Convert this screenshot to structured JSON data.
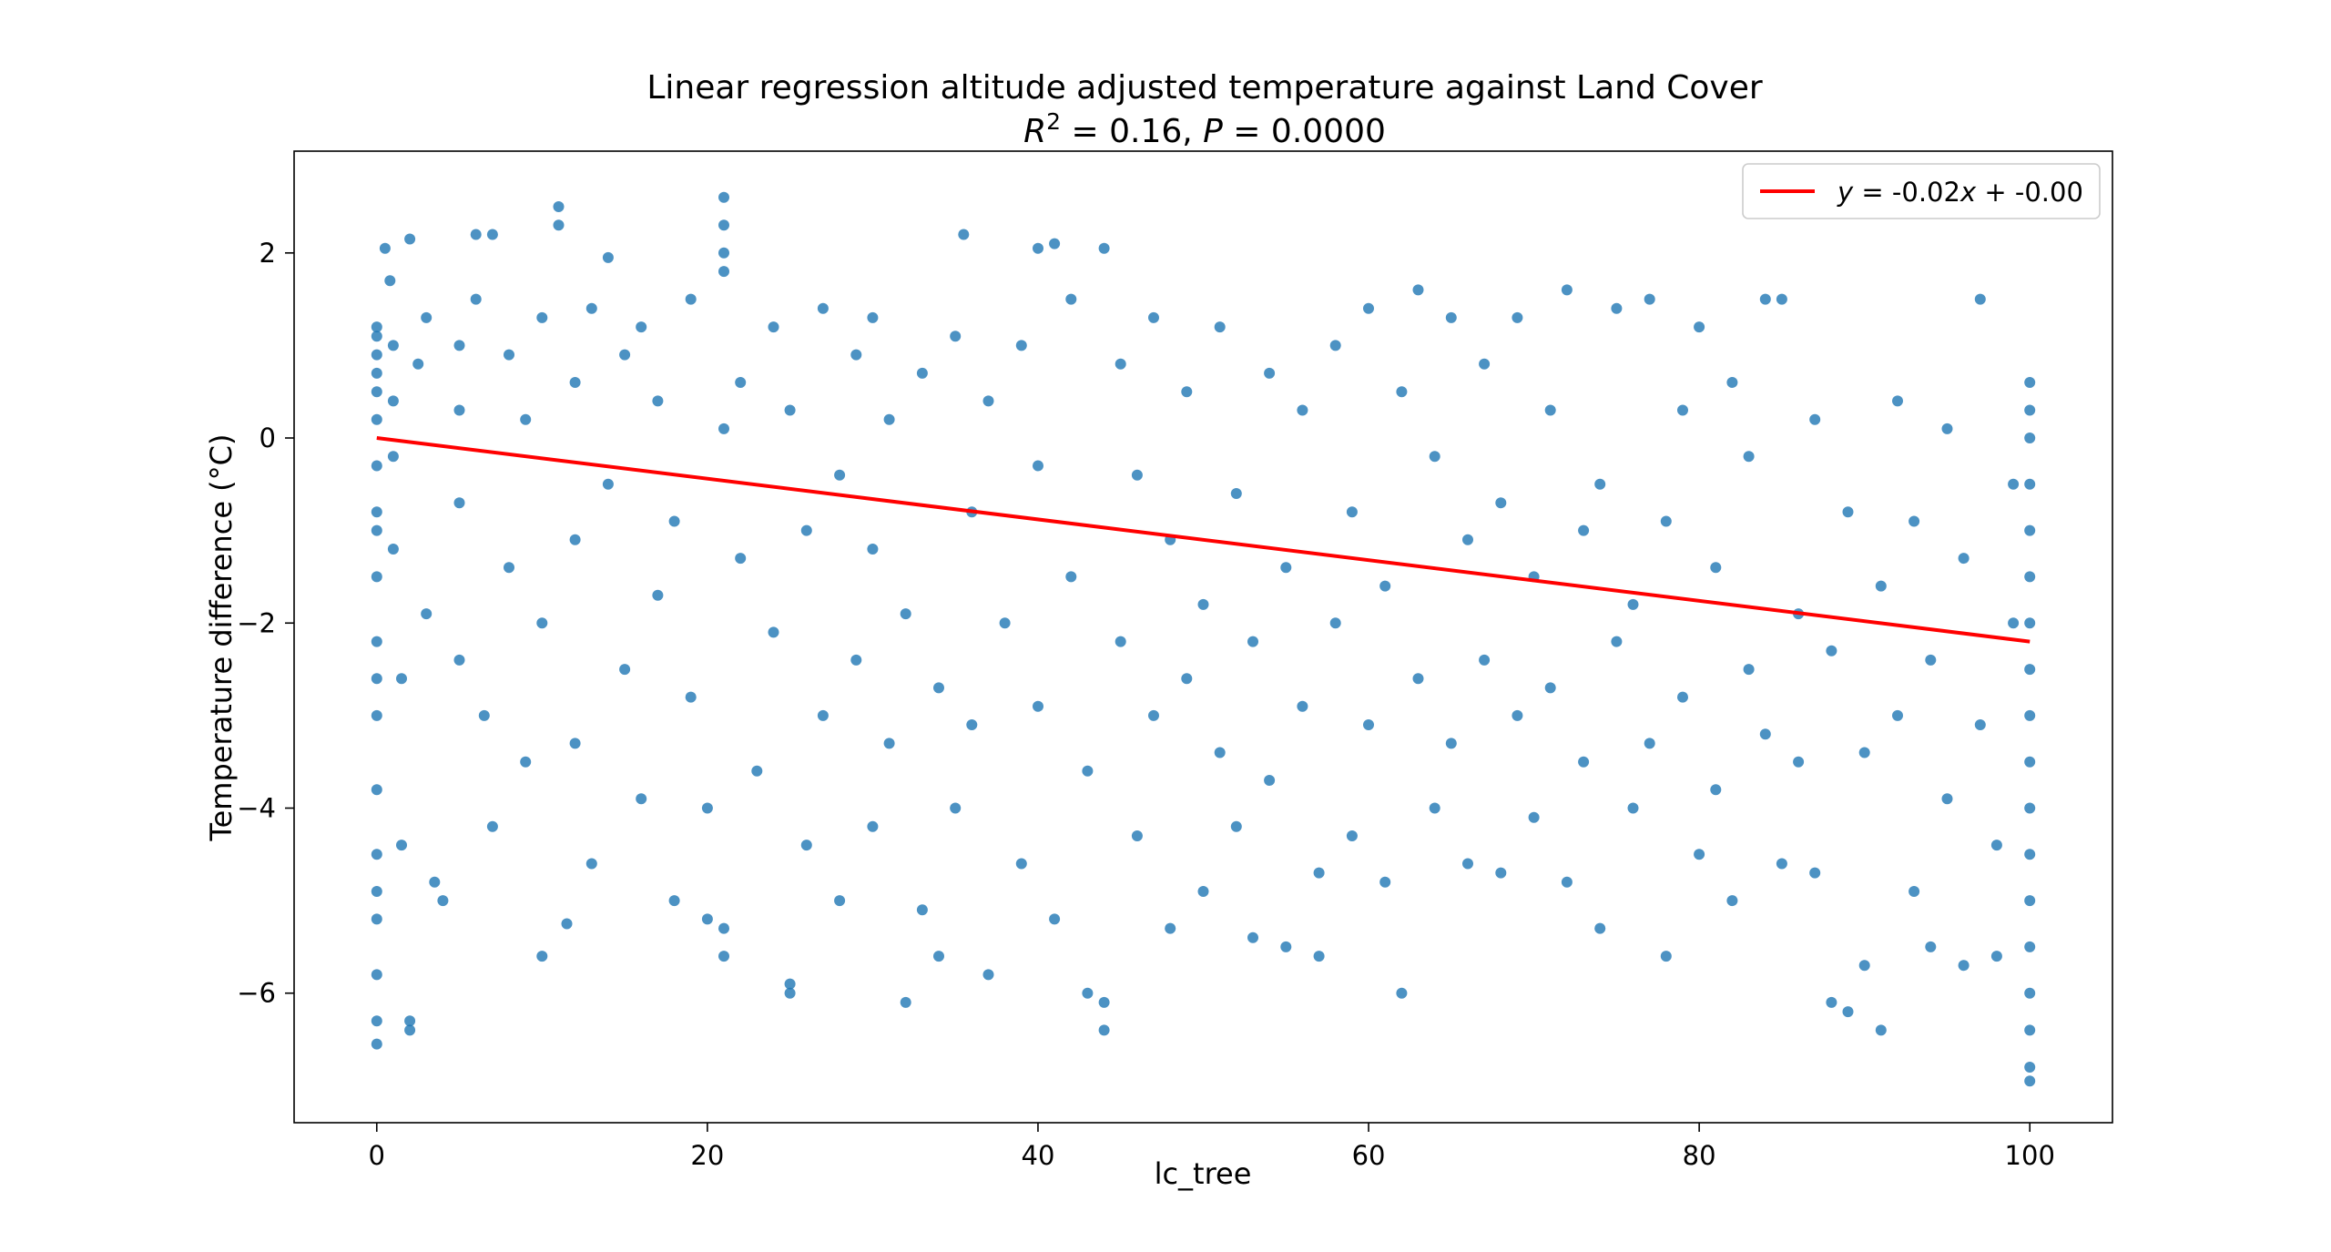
{
  "chart_data": {
    "type": "scatter",
    "title_line1": "Linear regression altitude adjusted temperature against Land Cover",
    "stats": {
      "r2_symbol": "R",
      "r2_exp": "2",
      "r2_value": " =  0.16, ",
      "p_symbol": "P",
      "p_value": " =  0.0000"
    },
    "xlabel": "lc_tree",
    "ylabel": "Temperature difference ($^\\circ$C)",
    "ylabel_display": "Temperature difference (°C)",
    "xlim": [
      -5,
      105
    ],
    "ylim": [
      -7.4,
      3.1
    ],
    "xticks": [
      0,
      20,
      40,
      60,
      80,
      100
    ],
    "yticks": [
      -6,
      -4,
      -2,
      0,
      2
    ],
    "ytick_labels": [
      "−6",
      "−4",
      "−2",
      "0",
      "2"
    ],
    "grid": false,
    "legend_placement": "top-right",
    "colors": {
      "points": "#1f77b4",
      "fit": "#ff0000"
    },
    "regression": {
      "slope": -0.02,
      "intercept": -0.0,
      "x_range": [
        0,
        100
      ],
      "y_start": 0.0,
      "y_end": -2.2,
      "legend_y": "y",
      "legend_eq": " = -0.02",
      "legend_x": "x",
      "legend_rest": " + -0.00"
    },
    "points": [
      [
        0,
        1.1
      ],
      [
        0,
        0.9
      ],
      [
        0,
        0.5
      ],
      [
        0,
        0.2
      ],
      [
        0,
        -0.3
      ],
      [
        0,
        -0.8
      ],
      [
        0,
        -1.5
      ],
      [
        0,
        -2.2
      ],
      [
        0,
        -3.0
      ],
      [
        0,
        -3.8
      ],
      [
        0,
        -4.5
      ],
      [
        0,
        -5.2
      ],
      [
        0,
        -5.8
      ],
      [
        0,
        -6.3
      ],
      [
        0,
        -6.55
      ],
      [
        0,
        0.7
      ],
      [
        0,
        1.2
      ],
      [
        0,
        -1.0
      ],
      [
        0,
        -2.6
      ],
      [
        0,
        -4.9
      ],
      [
        0.5,
        2.05
      ],
      [
        0.8,
        1.7
      ],
      [
        1,
        1.0
      ],
      [
        1,
        0.4
      ],
      [
        1,
        -0.2
      ],
      [
        1,
        -1.2
      ],
      [
        1.5,
        -2.6
      ],
      [
        1.5,
        -4.4
      ],
      [
        2,
        -6.3
      ],
      [
        2,
        -6.4
      ],
      [
        2,
        2.15
      ],
      [
        2.5,
        0.8
      ],
      [
        3,
        1.3
      ],
      [
        3,
        -1.9
      ],
      [
        3.5,
        -4.8
      ],
      [
        4,
        -5.0
      ],
      [
        5,
        1.0
      ],
      [
        5,
        0.3
      ],
      [
        5,
        -0.7
      ],
      [
        5,
        -2.4
      ],
      [
        6,
        2.2
      ],
      [
        6,
        1.5
      ],
      [
        6.5,
        -3.0
      ],
      [
        7,
        2.2
      ],
      [
        7,
        -4.2
      ],
      [
        8,
        0.9
      ],
      [
        8,
        -1.4
      ],
      [
        9,
        -3.5
      ],
      [
        9,
        0.2
      ],
      [
        10,
        -5.6
      ],
      [
        10,
        1.3
      ],
      [
        10,
        -2.0
      ],
      [
        11,
        2.5
      ],
      [
        11,
        2.3
      ],
      [
        11.5,
        -5.25
      ],
      [
        12,
        0.6
      ],
      [
        12,
        -1.1
      ],
      [
        12,
        -3.3
      ],
      [
        13,
        1.4
      ],
      [
        13,
        -4.6
      ],
      [
        14,
        1.95
      ],
      [
        14,
        -0.5
      ],
      [
        15,
        -2.5
      ],
      [
        15,
        0.9
      ],
      [
        16,
        -3.9
      ],
      [
        16,
        1.2
      ],
      [
        17,
        -1.7
      ],
      [
        17,
        0.4
      ],
      [
        18,
        -5.0
      ],
      [
        18,
        -0.9
      ],
      [
        19,
        1.5
      ],
      [
        19,
        -2.8
      ],
      [
        20,
        -5.2
      ],
      [
        20,
        -4.0
      ],
      [
        21,
        2.6
      ],
      [
        21,
        2.3
      ],
      [
        21,
        2.0
      ],
      [
        21,
        1.8
      ],
      [
        21,
        0.1
      ],
      [
        21,
        -5.6
      ],
      [
        21,
        -5.3
      ],
      [
        22,
        -1.3
      ],
      [
        22,
        0.6
      ],
      [
        23,
        -3.6
      ],
      [
        24,
        1.2
      ],
      [
        24,
        -2.1
      ],
      [
        25,
        -5.9
      ],
      [
        25,
        -6.0
      ],
      [
        25,
        0.3
      ],
      [
        26,
        -4.4
      ],
      [
        26,
        -1.0
      ],
      [
        27,
        1.4
      ],
      [
        27,
        -3.0
      ],
      [
        28,
        -0.4
      ],
      [
        28,
        -5.0
      ],
      [
        29,
        0.9
      ],
      [
        29,
        -2.4
      ],
      [
        30,
        -4.2
      ],
      [
        30,
        1.3
      ],
      [
        30,
        -1.2
      ],
      [
        31,
        -3.3
      ],
      [
        31,
        0.2
      ],
      [
        32,
        -6.1
      ],
      [
        32,
        -1.9
      ],
      [
        33,
        -5.1
      ],
      [
        33,
        0.7
      ],
      [
        34,
        -2.7
      ],
      [
        34,
        -5.6
      ],
      [
        35,
        1.1
      ],
      [
        35,
        -4.0
      ],
      [
        35.5,
        2.2
      ],
      [
        36,
        -0.8
      ],
      [
        36,
        -3.1
      ],
      [
        37,
        -5.8
      ],
      [
        37,
        0.4
      ],
      [
        38,
        -2.0
      ],
      [
        39,
        -4.6
      ],
      [
        39,
        1.0
      ],
      [
        40,
        -0.3
      ],
      [
        40,
        -2.9
      ],
      [
        40,
        2.05
      ],
      [
        41,
        -5.2
      ],
      [
        41,
        2.1
      ],
      [
        42,
        1.5
      ],
      [
        42,
        -1.5
      ],
      [
        43,
        -3.6
      ],
      [
        43,
        -6.0
      ],
      [
        44,
        -6.1
      ],
      [
        44,
        -6.4
      ],
      [
        44,
        2.05
      ],
      [
        45,
        0.8
      ],
      [
        45,
        -2.2
      ],
      [
        46,
        -4.3
      ],
      [
        46,
        -0.4
      ],
      [
        47,
        1.3
      ],
      [
        47,
        -3.0
      ],
      [
        48,
        -5.3
      ],
      [
        48,
        -1.1
      ],
      [
        49,
        0.5
      ],
      [
        49,
        -2.6
      ],
      [
        50,
        -4.9
      ],
      [
        50,
        -1.8
      ],
      [
        51,
        1.2
      ],
      [
        51,
        -3.4
      ],
      [
        52,
        -0.6
      ],
      [
        52,
        -4.2
      ],
      [
        53,
        -2.2
      ],
      [
        53,
        -5.4
      ],
      [
        54,
        0.7
      ],
      [
        54,
        -3.7
      ],
      [
        55,
        -1.4
      ],
      [
        55,
        -5.5
      ],
      [
        56,
        -2.9
      ],
      [
        56,
        0.3
      ],
      [
        57,
        -4.7
      ],
      [
        57,
        -5.6
      ],
      [
        58,
        1.0
      ],
      [
        58,
        -2.0
      ],
      [
        59,
        -4.3
      ],
      [
        59,
        -0.8
      ],
      [
        60,
        -3.1
      ],
      [
        60,
        1.4
      ],
      [
        61,
        -4.8
      ],
      [
        61,
        -1.6
      ],
      [
        62,
        -6.0
      ],
      [
        62,
        0.5
      ],
      [
        63,
        -2.6
      ],
      [
        63,
        1.6
      ],
      [
        64,
        -4.0
      ],
      [
        64,
        -0.2
      ],
      [
        65,
        -3.3
      ],
      [
        65,
        1.3
      ],
      [
        66,
        -1.1
      ],
      [
        66,
        -4.6
      ],
      [
        67,
        0.8
      ],
      [
        67,
        -2.4
      ],
      [
        68,
        -4.7
      ],
      [
        68,
        -0.7
      ],
      [
        69,
        1.3
      ],
      [
        69,
        -3.0
      ],
      [
        70,
        -1.5
      ],
      [
        70,
        -4.1
      ],
      [
        71,
        0.3
      ],
      [
        71,
        -2.7
      ],
      [
        72,
        -4.8
      ],
      [
        72,
        1.6
      ],
      [
        73,
        -1.0
      ],
      [
        73,
        -3.5
      ],
      [
        74,
        -5.3
      ],
      [
        74,
        -0.5
      ],
      [
        75,
        -2.2
      ],
      [
        75,
        1.4
      ],
      [
        76,
        -4.0
      ],
      [
        76,
        -1.8
      ],
      [
        77,
        1.5
      ],
      [
        77,
        -3.3
      ],
      [
        78,
        -5.6
      ],
      [
        78,
        -0.9
      ],
      [
        79,
        -2.8
      ],
      [
        79,
        0.3
      ],
      [
        80,
        -4.5
      ],
      [
        80,
        1.2
      ],
      [
        81,
        -1.4
      ],
      [
        81,
        -3.8
      ],
      [
        82,
        -5.0
      ],
      [
        82,
        0.6
      ],
      [
        83,
        -2.5
      ],
      [
        83,
        -0.2
      ],
      [
        84,
        1.5
      ],
      [
        84,
        -3.2
      ],
      [
        85,
        -4.6
      ],
      [
        85,
        1.5
      ],
      [
        86,
        -1.9
      ],
      [
        86,
        -3.5
      ],
      [
        87,
        -4.7
      ],
      [
        87,
        0.2
      ],
      [
        88,
        -6.1
      ],
      [
        88,
        -2.3
      ],
      [
        89,
        -6.2
      ],
      [
        89,
        -0.8
      ],
      [
        90,
        -3.4
      ],
      [
        90,
        -5.7
      ],
      [
        91,
        -6.4
      ],
      [
        91,
        -1.6
      ],
      [
        92,
        0.4
      ],
      [
        92,
        -3.0
      ],
      [
        93,
        -4.9
      ],
      [
        93,
        -0.9
      ],
      [
        94,
        -2.4
      ],
      [
        94,
        -5.5
      ],
      [
        95,
        -3.9
      ],
      [
        95,
        0.1
      ],
      [
        96,
        -1.3
      ],
      [
        96,
        -5.7
      ],
      [
        97,
        -3.1
      ],
      [
        97,
        1.5
      ],
      [
        98,
        -4.4
      ],
      [
        98,
        -5.6
      ],
      [
        99,
        -2.0
      ],
      [
        99,
        -0.5
      ],
      [
        100,
        0.6
      ],
      [
        100,
        0.3
      ],
      [
        100,
        0.0
      ],
      [
        100,
        -0.5
      ],
      [
        100,
        -1.0
      ],
      [
        100,
        -1.5
      ],
      [
        100,
        -2.0
      ],
      [
        100,
        -2.5
      ],
      [
        100,
        -3.0
      ],
      [
        100,
        -3.5
      ],
      [
        100,
        -4.0
      ],
      [
        100,
        -4.5
      ],
      [
        100,
        -5.0
      ],
      [
        100,
        -5.5
      ],
      [
        100,
        -6.0
      ],
      [
        100,
        -6.4
      ],
      [
        100,
        -6.8
      ],
      [
        100,
        -6.95
      ]
    ]
  }
}
